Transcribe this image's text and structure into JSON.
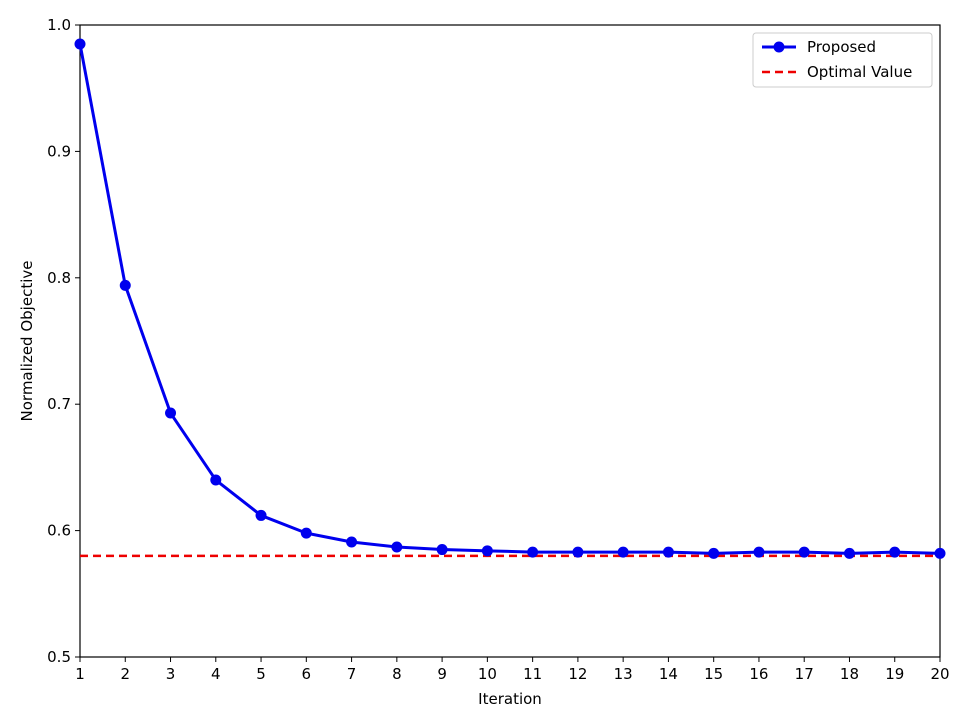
{
  "chart_data": {
    "type": "line",
    "xlabel": "Iteration",
    "ylabel": "Normalized Objective",
    "xlim": [
      1,
      20
    ],
    "ylim": [
      0.5,
      1.0
    ],
    "xticks": [
      "1",
      "2",
      "3",
      "4",
      "5",
      "6",
      "7",
      "8",
      "9",
      "10",
      "11",
      "12",
      "13",
      "14",
      "15",
      "16",
      "17",
      "18",
      "19",
      "20"
    ],
    "yticks": [
      "0.5",
      "0.6",
      "0.7",
      "0.8",
      "0.9",
      "1.0"
    ],
    "grid": false,
    "legend_position": "top-right",
    "series": [
      {
        "name": "Proposed",
        "color": "#0000ee",
        "marker": "circle",
        "x": [
          1,
          2,
          3,
          4,
          5,
          6,
          7,
          8,
          9,
          10,
          11,
          12,
          13,
          14,
          15,
          16,
          17,
          18,
          19,
          20
        ],
        "y": [
          0.985,
          0.794,
          0.693,
          0.64,
          0.612,
          0.598,
          0.591,
          0.587,
          0.585,
          0.584,
          0.583,
          0.583,
          0.583,
          0.583,
          0.582,
          0.583,
          0.583,
          0.582,
          0.583,
          0.582
        ]
      }
    ],
    "reference_lines": [
      {
        "name": "Optimal Value",
        "y": 0.58,
        "color": "#ee0000",
        "style": "dashed"
      }
    ]
  }
}
